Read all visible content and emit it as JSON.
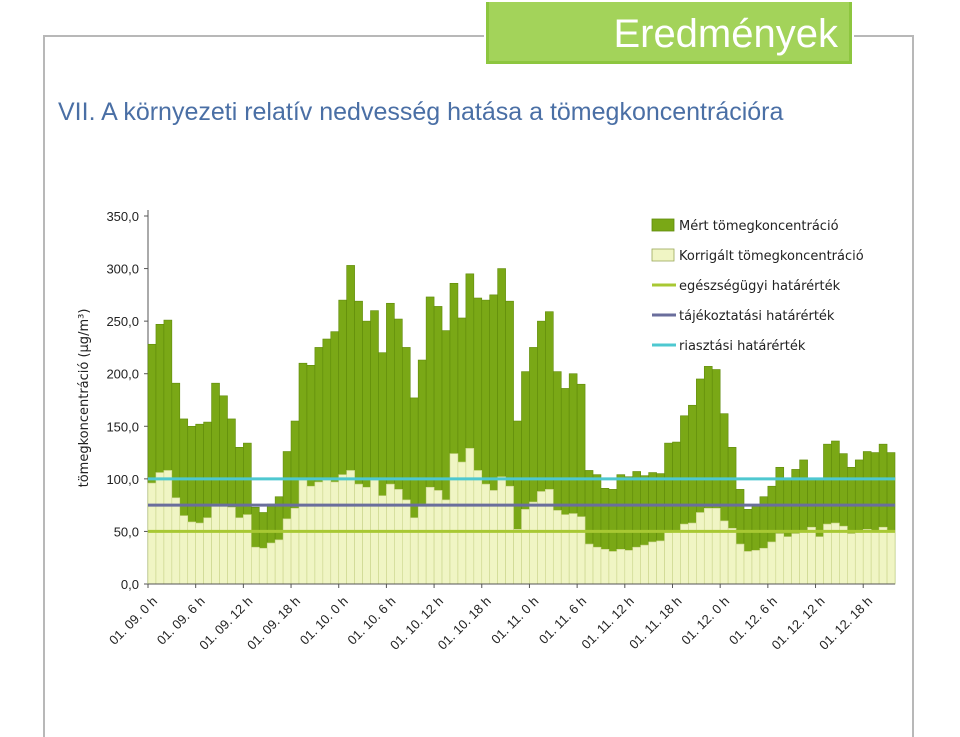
{
  "header": {
    "title": "Eredmények"
  },
  "slide": {
    "subtitle": "VII. A környezeti relatív nedvesség hatása a tömegkoncentrációra"
  },
  "colors": {
    "measured": "#7aa816",
    "corrected": "#f0f5c4",
    "health_limit": "#a8c833",
    "info_limit": "#6a6e9c",
    "alarm_limit": "#4ec8d0"
  },
  "chart_data": {
    "type": "bar",
    "ylabel": "tömegkoncentráció (μg/m³)",
    "ylim": [
      0,
      350
    ],
    "yticks": [
      "0,0",
      "50,0",
      "100,0",
      "150,0",
      "200,0",
      "250,0",
      "300,0",
      "350,0"
    ],
    "ytick_values": [
      0,
      50,
      100,
      150,
      200,
      250,
      300,
      350
    ],
    "xtick_labels": [
      "01. 09. 0 h",
      "01. 09. 6 h",
      "01. 09. 12 h",
      "01. 09. 18 h",
      "01. 10. 0 h",
      "01. 10. 6 h",
      "01. 10. 12 h",
      "01. 10. 18 h",
      "01. 11. 0 h",
      "01. 11. 6 h",
      "01. 11. 12 h",
      "01. 11. 18 h",
      "01. 12. 0 h",
      "01. 12. 6 h",
      "01. 12. 12 h",
      "01. 12. 18 h"
    ],
    "legend_position": "top-right",
    "series": [
      {
        "name": "Mért tömegkoncentráció",
        "values": [
          228,
          247,
          251,
          191,
          157,
          150,
          152,
          154,
          191,
          179,
          157,
          130,
          134,
          73,
          68,
          76,
          83,
          126,
          155,
          210,
          208,
          225,
          233,
          240,
          270,
          303,
          269,
          250,
          260,
          220,
          267,
          252,
          225,
          177,
          213,
          273,
          264,
          241,
          286,
          253,
          295,
          272,
          270,
          275,
          300,
          269,
          155,
          202,
          225,
          250,
          259,
          202,
          186,
          200,
          190,
          108,
          104,
          91,
          90,
          104,
          102,
          107,
          103,
          106,
          105,
          134,
          135,
          160,
          170,
          195,
          207,
          204,
          162,
          130,
          90,
          71,
          74,
          83,
          93,
          111,
          101,
          109,
          118,
          100,
          100,
          133,
          136,
          124,
          111,
          118,
          126,
          125,
          133,
          125
        ]
      },
      {
        "name": "Korrigált tömegkoncentráció",
        "values": [
          96,
          106,
          108,
          82,
          65,
          59,
          58,
          63,
          76,
          75,
          73,
          63,
          66,
          35,
          34,
          39,
          42,
          62,
          72,
          99,
          93,
          97,
          99,
          97,
          104,
          108,
          95,
          92,
          99,
          84,
          95,
          90,
          80,
          63,
          76,
          92,
          89,
          80,
          124,
          116,
          129,
          108,
          95,
          89,
          102,
          93,
          52,
          71,
          78,
          88,
          90,
          70,
          66,
          67,
          64,
          38,
          35,
          33,
          31,
          33,
          32,
          35,
          37,
          40,
          41,
          49,
          50,
          57,
          58,
          68,
          72,
          72,
          60,
          53,
          38,
          31,
          32,
          34,
          40,
          48,
          45,
          48,
          51,
          54,
          45,
          57,
          58,
          55,
          48,
          49,
          52,
          51,
          54,
          51
        ]
      }
    ],
    "lines": [
      {
        "name": "egészségügyi határérték",
        "value": 50
      },
      {
        "name": "tájékoztatási határérték",
        "value": 75
      },
      {
        "name": "riasztási határérték",
        "value": 100
      }
    ]
  }
}
